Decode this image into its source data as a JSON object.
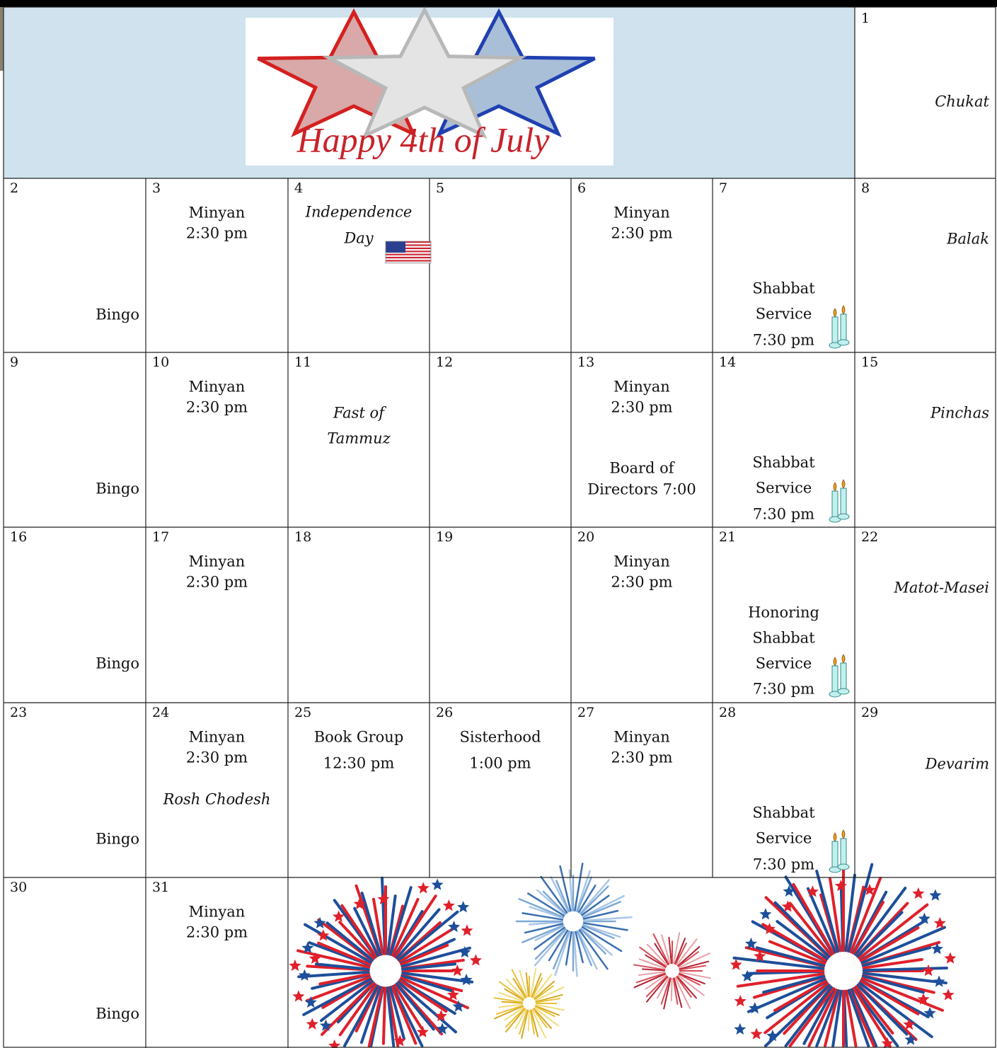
{
  "banner": {
    "greeting": "Happy 4th of July"
  },
  "calendar": {
    "days": [
      {
        "day": 1,
        "notes": [
          "Chukat"
        ]
      },
      {
        "day": 2,
        "notes": [
          "Bingo"
        ]
      },
      {
        "day": 3,
        "notes": [
          "Minyan",
          "2:30 pm"
        ]
      },
      {
        "day": 4,
        "notes": [
          "Independence",
          "Day"
        ]
      },
      {
        "day": 5,
        "notes": []
      },
      {
        "day": 6,
        "notes": [
          "Minyan",
          "2:30 pm"
        ]
      },
      {
        "day": 7,
        "notes": [
          "Shabbat",
          "Service",
          "7:30 pm"
        ]
      },
      {
        "day": 8,
        "notes": [
          "Balak"
        ]
      },
      {
        "day": 9,
        "notes": [
          "Bingo"
        ]
      },
      {
        "day": 10,
        "notes": [
          "Minyan",
          "2:30 pm"
        ]
      },
      {
        "day": 11,
        "notes": [
          "Fast of",
          "Tammuz"
        ]
      },
      {
        "day": 12,
        "notes": []
      },
      {
        "day": 13,
        "notes": [
          "Minyan",
          "2:30 pm",
          "Board of",
          "Directors 7:00"
        ]
      },
      {
        "day": 14,
        "notes": [
          "Shabbat",
          "Service",
          "7:30 pm"
        ]
      },
      {
        "day": 15,
        "notes": [
          "Pinchas"
        ]
      },
      {
        "day": 16,
        "notes": [
          "Bingo"
        ]
      },
      {
        "day": 17,
        "notes": [
          "Minyan",
          "2:30 pm"
        ]
      },
      {
        "day": 18,
        "notes": []
      },
      {
        "day": 19,
        "notes": []
      },
      {
        "day": 20,
        "notes": [
          "Minyan",
          "2:30 pm"
        ]
      },
      {
        "day": 21,
        "notes": [
          "Honoring",
          "Shabbat",
          "Service",
          "7:30 pm"
        ]
      },
      {
        "day": 22,
        "notes": [
          "Matot-Masei"
        ]
      },
      {
        "day": 23,
        "notes": [
          "Bingo"
        ]
      },
      {
        "day": 24,
        "notes": [
          "Minyan",
          "2:30 pm",
          "Rosh Chodesh"
        ]
      },
      {
        "day": 25,
        "notes": [
          "Book Group",
          "12:30 pm"
        ]
      },
      {
        "day": 26,
        "notes": [
          "Sisterhood",
          "1:00 pm"
        ]
      },
      {
        "day": 27,
        "notes": [
          "Minyan",
          "2:30 pm"
        ]
      },
      {
        "day": 28,
        "notes": [
          "Shabbat",
          "Service",
          "7:30 pm"
        ]
      },
      {
        "day": 29,
        "notes": [
          "Devarim"
        ]
      },
      {
        "day": 30,
        "notes": [
          "Bingo"
        ]
      },
      {
        "day": 31,
        "notes": [
          "Minyan",
          "2:30 pm"
        ]
      }
    ]
  }
}
